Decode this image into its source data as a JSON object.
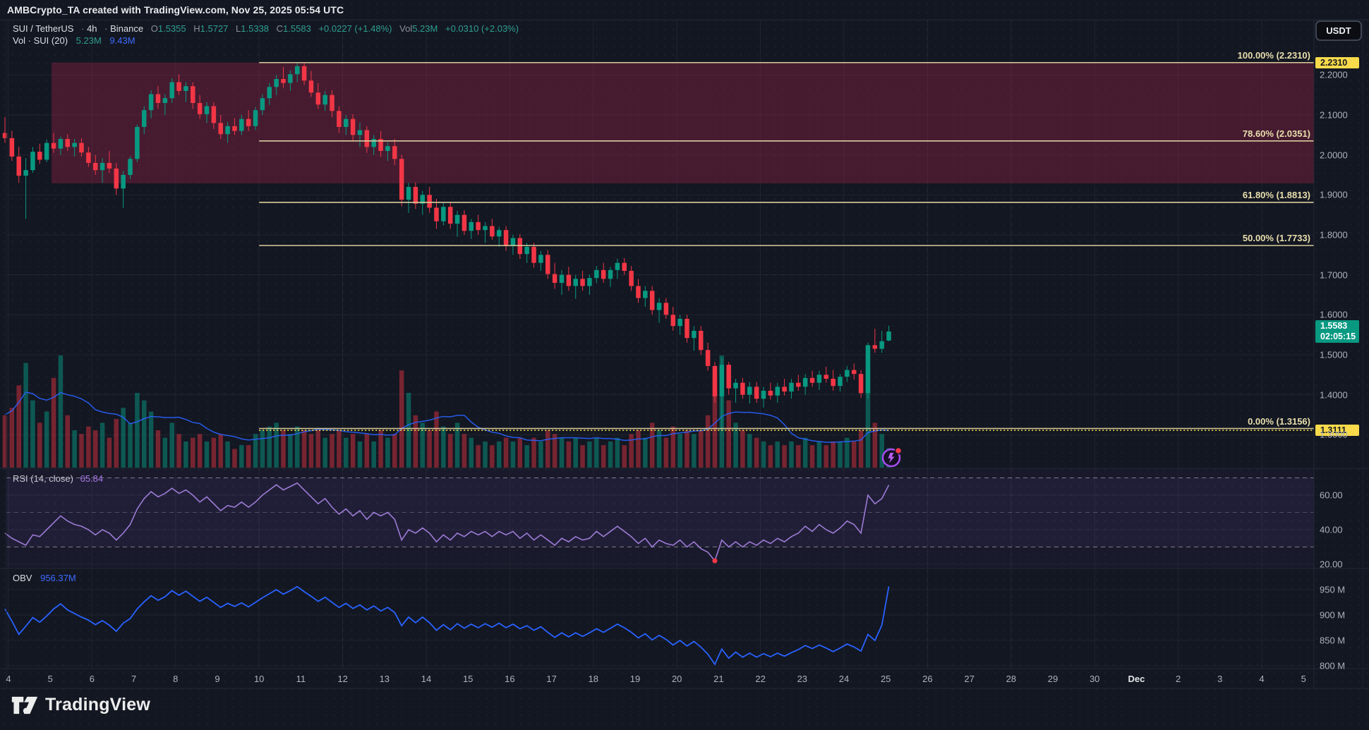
{
  "watermark": "AMBCrypto_TA created with TradingView.com, Nov 25, 2025 05:54 UTC",
  "header": {
    "symbol": "SUI / TetherUS",
    "separator": "·",
    "interval": "4h",
    "exchange": "Binance",
    "o_key": "O",
    "o_val": "1.5355",
    "h_key": "H",
    "h_val": "1.5727",
    "l_key": "L",
    "l_val": "1.5338",
    "c_key": "C",
    "c_val": "1.5583",
    "change": "+0.0227 (+1.48%)",
    "vol_key": "Vol",
    "vol_val": "5.23M",
    "vol_change": "+0.0310 (+2.03%)",
    "currency_button": "USDT"
  },
  "volume_legend": {
    "label": "Vol · SUI (20)",
    "value": "5.23M",
    "ma_value": "9.43M"
  },
  "footer_logo": "TradingView",
  "colors": {
    "up": "#089981",
    "down": "#f23645",
    "fib": "#d9cd9c",
    "fib_text": "#e9dfad",
    "tag_yellow": "#f8da4b",
    "rsi_line": "#9c7bd4",
    "obv_line": "#2962ff",
    "vol_ma_line": "#2962ff",
    "range_box_fill": "rgba(170,35,76,0.34)",
    "grid": "rgba(255,255,255,0.055)"
  },
  "chart_data": [
    {
      "type": "candlestick",
      "title": "SUI / TetherUS 4h Binance",
      "x_labels": [
        "4",
        "5",
        "6",
        "7",
        "8",
        "9",
        "10",
        "11",
        "12",
        "13",
        "14",
        "15",
        "16",
        "17",
        "18",
        "19",
        "20",
        "21",
        "22",
        "23",
        "24",
        "25",
        "26",
        "27",
        "28",
        "29",
        "30",
        "Dec",
        "2",
        "3",
        "4",
        "5"
      ],
      "dec_label_index": 27,
      "y_ticks": [
        {
          "v": 2.2,
          "t": "2.2000"
        },
        {
          "v": 2.1,
          "t": "2.1000"
        },
        {
          "v": 2.0,
          "t": "2.0000"
        },
        {
          "v": 1.9,
          "t": "1.9000"
        },
        {
          "v": 1.8,
          "t": "1.8000"
        },
        {
          "v": 1.7,
          "t": "1.7000"
        },
        {
          "v": 1.6,
          "t": "1.6000"
        },
        {
          "v": 1.5,
          "t": "1.5000"
        },
        {
          "v": 1.4,
          "t": "1.4000"
        },
        {
          "v": 1.3,
          "t": "1.3000"
        }
      ],
      "fib_levels": [
        {
          "label": "100.00% (2.2310)",
          "price": 2.231
        },
        {
          "label": "78.60% (2.0351)",
          "price": 2.0351
        },
        {
          "label": "61.80% (1.8813)",
          "price": 1.8813
        },
        {
          "label": "50.00% (1.7733)",
          "price": 1.7733
        },
        {
          "label": "0.00% (1.3156)",
          "price": 1.3156
        }
      ],
      "fib_from_day": 6.0,
      "range_box": {
        "from_day": 1.03,
        "price_top": 2.231,
        "price_bottom": 1.929
      },
      "low_line": {
        "price": 1.3111,
        "tag": "1.3111",
        "from_day": 6.0
      },
      "high_tag": {
        "text": "2.2310",
        "price": 2.231
      },
      "current_tag": {
        "price_text": "1.5583",
        "countdown": "02:05:15",
        "price": 1.5583
      },
      "candles": [
        [
          2.055,
          2.095,
          2.03,
          2.042,
          14
        ],
        [
          2.042,
          2.06,
          1.985,
          1.996,
          16
        ],
        [
          1.996,
          2.02,
          1.93,
          1.948,
          22
        ],
        [
          1.948,
          1.992,
          1.84,
          1.962,
          28
        ],
        [
          1.962,
          2.02,
          1.955,
          2.008,
          18
        ],
        [
          2.008,
          2.028,
          1.978,
          1.988,
          12
        ],
        [
          1.988,
          2.038,
          1.982,
          2.03,
          15
        ],
        [
          2.03,
          2.055,
          2.005,
          2.016,
          24
        ],
        [
          2.016,
          2.046,
          2.0,
          2.04,
          30
        ],
        [
          2.04,
          2.052,
          2.01,
          2.02,
          14
        ],
        [
          2.02,
          2.04,
          1.996,
          2.03,
          10
        ],
        [
          2.03,
          2.042,
          1.996,
          2.006,
          9
        ],
        [
          2.006,
          2.02,
          1.97,
          1.98,
          11
        ],
        [
          1.98,
          2.0,
          1.95,
          1.962,
          10
        ],
        [
          1.962,
          1.992,
          1.93,
          1.98,
          12
        ],
        [
          1.98,
          2.01,
          1.955,
          1.966,
          8
        ],
        [
          1.966,
          1.98,
          1.9,
          1.916,
          13
        ],
        [
          1.916,
          1.96,
          1.868,
          1.95,
          16
        ],
        [
          1.95,
          1.996,
          1.94,
          1.99,
          12
        ],
        [
          1.99,
          2.076,
          1.982,
          2.07,
          20
        ],
        [
          2.07,
          2.122,
          2.052,
          2.112,
          18
        ],
        [
          2.112,
          2.162,
          2.092,
          2.152,
          15
        ],
        [
          2.152,
          2.172,
          2.115,
          2.13,
          10
        ],
        [
          2.13,
          2.152,
          2.1,
          2.142,
          8
        ],
        [
          2.142,
          2.192,
          2.13,
          2.182,
          12
        ],
        [
          2.182,
          2.202,
          2.15,
          2.16,
          9
        ],
        [
          2.16,
          2.182,
          2.132,
          2.172,
          7
        ],
        [
          2.172,
          2.182,
          2.115,
          2.13,
          8
        ],
        [
          2.13,
          2.15,
          2.09,
          2.102,
          9
        ],
        [
          2.102,
          2.132,
          2.08,
          2.122,
          7
        ],
        [
          2.122,
          2.132,
          2.065,
          2.08,
          8
        ],
        [
          2.08,
          2.1,
          2.04,
          2.052,
          9
        ],
        [
          2.052,
          2.082,
          2.03,
          2.072,
          7
        ],
        [
          2.072,
          2.092,
          2.05,
          2.06,
          5
        ],
        [
          2.06,
          2.1,
          2.05,
          2.09,
          6
        ],
        [
          2.09,
          2.112,
          2.06,
          2.072,
          6
        ],
        [
          2.072,
          2.12,
          2.062,
          2.112,
          9
        ],
        [
          2.112,
          2.152,
          2.1,
          2.142,
          10
        ],
        [
          2.142,
          2.18,
          2.125,
          2.17,
          11
        ],
        [
          2.17,
          2.2,
          2.15,
          2.19,
          12
        ],
        [
          2.19,
          2.22,
          2.168,
          2.18,
          10
        ],
        [
          2.18,
          2.212,
          2.16,
          2.202,
          9
        ],
        [
          2.202,
          2.231,
          2.182,
          2.222,
          11
        ],
        [
          2.222,
          2.23,
          2.175,
          2.186,
          10
        ],
        [
          2.186,
          2.21,
          2.145,
          2.156,
          9
        ],
        [
          2.156,
          2.18,
          2.115,
          2.126,
          10
        ],
        [
          2.126,
          2.16,
          2.11,
          2.15,
          8
        ],
        [
          2.15,
          2.162,
          2.095,
          2.11,
          9
        ],
        [
          2.11,
          2.122,
          2.055,
          2.07,
          10
        ],
        [
          2.07,
          2.1,
          2.05,
          2.09,
          8
        ],
        [
          2.09,
          2.102,
          2.035,
          2.05,
          9
        ],
        [
          2.05,
          2.08,
          2.02,
          2.062,
          7
        ],
        [
          2.062,
          2.072,
          2.005,
          2.02,
          9
        ],
        [
          2.02,
          2.05,
          2.0,
          2.04,
          7
        ],
        [
          2.04,
          2.06,
          1.995,
          2.01,
          10
        ],
        [
          2.01,
          2.032,
          1.985,
          2.022,
          8
        ],
        [
          2.022,
          2.04,
          1.975,
          1.99,
          9
        ],
        [
          1.99,
          2.0,
          1.872,
          1.888,
          26
        ],
        [
          1.888,
          1.93,
          1.855,
          1.92,
          20
        ],
        [
          1.92,
          1.932,
          1.865,
          1.878,
          14
        ],
        [
          1.878,
          1.91,
          1.85,
          1.9,
          12
        ],
        [
          1.9,
          1.92,
          1.855,
          1.868,
          10
        ],
        [
          1.868,
          1.89,
          1.815,
          1.834,
          15
        ],
        [
          1.834,
          1.88,
          1.824,
          1.87,
          11
        ],
        [
          1.87,
          1.882,
          1.815,
          1.828,
          9
        ],
        [
          1.828,
          1.86,
          1.795,
          1.85,
          12
        ],
        [
          1.85,
          1.862,
          1.8,
          1.81,
          9
        ],
        [
          1.81,
          1.84,
          1.79,
          1.832,
          8
        ],
        [
          1.832,
          1.85,
          1.8,
          1.812,
          6
        ],
        [
          1.812,
          1.832,
          1.78,
          1.822,
          7
        ],
        [
          1.822,
          1.84,
          1.788,
          1.796,
          6
        ],
        [
          1.796,
          1.82,
          1.77,
          1.812,
          7
        ],
        [
          1.812,
          1.822,
          1.76,
          1.772,
          8
        ],
        [
          1.772,
          1.8,
          1.75,
          1.792,
          7
        ],
        [
          1.792,
          1.802,
          1.74,
          1.752,
          8
        ],
        [
          1.752,
          1.78,
          1.73,
          1.77,
          6
        ],
        [
          1.77,
          1.78,
          1.718,
          1.73,
          8
        ],
        [
          1.73,
          1.76,
          1.71,
          1.75,
          7
        ],
        [
          1.75,
          1.762,
          1.69,
          1.702,
          10
        ],
        [
          1.702,
          1.73,
          1.665,
          1.68,
          9
        ],
        [
          1.68,
          1.712,
          1.65,
          1.7,
          8
        ],
        [
          1.7,
          1.72,
          1.66,
          1.672,
          7
        ],
        [
          1.672,
          1.7,
          1.64,
          1.69,
          8
        ],
        [
          1.69,
          1.71,
          1.66,
          1.672,
          6
        ],
        [
          1.672,
          1.7,
          1.65,
          1.692,
          7
        ],
        [
          1.692,
          1.722,
          1.68,
          1.712,
          8
        ],
        [
          1.712,
          1.73,
          1.68,
          1.69,
          6
        ],
        [
          1.69,
          1.72,
          1.67,
          1.712,
          7
        ],
        [
          1.712,
          1.74,
          1.69,
          1.73,
          8
        ],
        [
          1.73,
          1.742,
          1.7,
          1.71,
          6
        ],
        [
          1.71,
          1.722,
          1.66,
          1.672,
          9
        ],
        [
          1.672,
          1.69,
          1.63,
          1.642,
          10
        ],
        [
          1.642,
          1.672,
          1.62,
          1.66,
          8
        ],
        [
          1.66,
          1.672,
          1.6,
          1.612,
          12
        ],
        [
          1.612,
          1.642,
          1.58,
          1.63,
          10
        ],
        [
          1.63,
          1.642,
          1.59,
          1.6,
          8
        ],
        [
          1.6,
          1.62,
          1.56,
          1.572,
          11
        ],
        [
          1.572,
          1.6,
          1.55,
          1.59,
          9
        ],
        [
          1.59,
          1.6,
          1.53,
          1.542,
          10
        ],
        [
          1.542,
          1.572,
          1.51,
          1.56,
          9
        ],
        [
          1.56,
          1.572,
          1.5,
          1.512,
          10
        ],
        [
          1.512,
          1.53,
          1.46,
          1.472,
          14
        ],
        [
          1.472,
          1.482,
          1.38,
          1.396,
          24
        ],
        [
          1.396,
          1.492,
          1.3111,
          1.475,
          30
        ],
        [
          1.475,
          1.482,
          1.4,
          1.416,
          18
        ],
        [
          1.416,
          1.44,
          1.38,
          1.43,
          12
        ],
        [
          1.43,
          1.442,
          1.39,
          1.4,
          10
        ],
        [
          1.4,
          1.432,
          1.378,
          1.42,
          9
        ],
        [
          1.42,
          1.432,
          1.38,
          1.39,
          8
        ],
        [
          1.39,
          1.42,
          1.368,
          1.41,
          7
        ],
        [
          1.41,
          1.43,
          1.388,
          1.398,
          6
        ],
        [
          1.398,
          1.43,
          1.38,
          1.42,
          7
        ],
        [
          1.42,
          1.44,
          1.398,
          1.408,
          6
        ],
        [
          1.408,
          1.44,
          1.39,
          1.43,
          7
        ],
        [
          1.43,
          1.45,
          1.41,
          1.42,
          6
        ],
        [
          1.42,
          1.452,
          1.4,
          1.442,
          8
        ],
        [
          1.442,
          1.46,
          1.42,
          1.43,
          6
        ],
        [
          1.43,
          1.46,
          1.412,
          1.45,
          7
        ],
        [
          1.45,
          1.47,
          1.43,
          1.44,
          6
        ],
        [
          1.44,
          1.462,
          1.41,
          1.422,
          7
        ],
        [
          1.422,
          1.452,
          1.408,
          1.445,
          7
        ],
        [
          1.445,
          1.472,
          1.432,
          1.462,
          8
        ],
        [
          1.462,
          1.478,
          1.438,
          1.452,
          7
        ],
        [
          1.452,
          1.462,
          1.392,
          1.404,
          10
        ],
        [
          1.404,
          1.53,
          1.39,
          1.524,
          26
        ],
        [
          1.524,
          1.565,
          1.505,
          1.515,
          12
        ],
        [
          1.515,
          1.56,
          1.505,
          1.534,
          9
        ],
        [
          1.5355,
          1.5727,
          1.5338,
          1.5583,
          5.23
        ]
      ]
    },
    {
      "type": "line",
      "name": "RSI",
      "legend": "RSI (14, close)",
      "value_text": "65.84",
      "bands": [
        70,
        50,
        30
      ],
      "y_ticks": [
        {
          "v": 60,
          "t": "60.00"
        },
        {
          "v": 40,
          "t": "40.00"
        },
        {
          "v": 20,
          "t": "20.00"
        }
      ],
      "dot_index": 102,
      "values": [
        38,
        35,
        33,
        31,
        37,
        36,
        40,
        44,
        48,
        45,
        43,
        42,
        40,
        37,
        40,
        38,
        34,
        38,
        43,
        52,
        58,
        62,
        59,
        61,
        64,
        61,
        63,
        60,
        56,
        59,
        55,
        51,
        54,
        53,
        56,
        53,
        56,
        60,
        63,
        66,
        63,
        65,
        67,
        63,
        59,
        55,
        58,
        53,
        49,
        52,
        48,
        51,
        46,
        50,
        48,
        50,
        46,
        34,
        40,
        38,
        41,
        38,
        33,
        37,
        34,
        38,
        36,
        39,
        37,
        39,
        36,
        39,
        37,
        39,
        35,
        38,
        34,
        37,
        34,
        31,
        35,
        33,
        36,
        34,
        35,
        39,
        36,
        39,
        42,
        39,
        36,
        32,
        35,
        30,
        34,
        32,
        31,
        34,
        30,
        33,
        29,
        27,
        22,
        34,
        30,
        33,
        30,
        33,
        31,
        34,
        32,
        35,
        33,
        36,
        38,
        42,
        39,
        43,
        40,
        38,
        41,
        45,
        43,
        38,
        60,
        55,
        58,
        65.84
      ]
    },
    {
      "type": "line",
      "name": "OBV",
      "legend": "OBV",
      "value_text": "956.37M",
      "y_ticks": [
        {
          "v": 950,
          "t": "950 M"
        },
        {
          "v": 900,
          "t": "900 M"
        },
        {
          "v": 850,
          "t": "850 M"
        },
        {
          "v": 800,
          "t": "800 M"
        }
      ],
      "values": [
        912,
        888,
        862,
        878,
        895,
        886,
        898,
        912,
        922,
        910,
        903,
        896,
        890,
        881,
        889,
        880,
        868,
        884,
        893,
        912,
        926,
        938,
        929,
        936,
        948,
        939,
        947,
        937,
        927,
        935,
        925,
        915,
        923,
        917,
        924,
        916,
        925,
        934,
        942,
        950,
        941,
        948,
        956,
        946,
        937,
        927,
        935,
        925,
        915,
        923,
        913,
        920,
        910,
        918,
        908,
        915,
        905,
        879,
        896,
        885,
        896,
        885,
        870,
        881,
        871,
        883,
        874,
        882,
        875,
        883,
        876,
        884,
        875,
        882,
        873,
        879,
        870,
        877,
        866,
        856,
        865,
        857,
        865,
        858,
        865,
        873,
        866,
        874,
        882,
        875,
        866,
        855,
        863,
        851,
        860,
        852,
        841,
        850,
        839,
        848,
        837,
        823,
        803,
        833,
        815,
        827,
        817,
        825,
        817,
        824,
        818,
        825,
        819,
        826,
        832,
        840,
        834,
        841,
        835,
        828,
        835,
        843,
        837,
        829,
        862,
        850,
        880,
        956.37
      ]
    }
  ]
}
